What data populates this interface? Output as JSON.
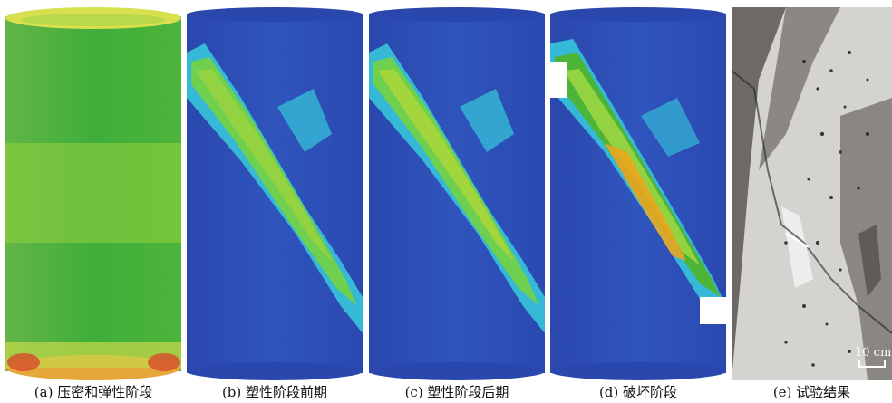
{
  "figure": {
    "panels": [
      {
        "id": "a",
        "caption": "(a) 压密和弹性阶段"
      },
      {
        "id": "b",
        "caption": "(b) 塑性阶段前期"
      },
      {
        "id": "c",
        "caption": "(c) 塑性阶段后期"
      },
      {
        "id": "d",
        "caption": "(d) 破坏阶段"
      },
      {
        "id": "e",
        "caption": "(e) 试验结果"
      }
    ],
    "scale_bar": {
      "label": "10 cm"
    }
  },
  "colors": {
    "cylinder_blue": "#2d4fb3",
    "cylinder_green": "#4db43a",
    "crack_green": "#93d241",
    "crack_cyan": "#36b9d6",
    "crack_orange": "#f2a51c",
    "rock_gray": "#7f7d7a"
  }
}
